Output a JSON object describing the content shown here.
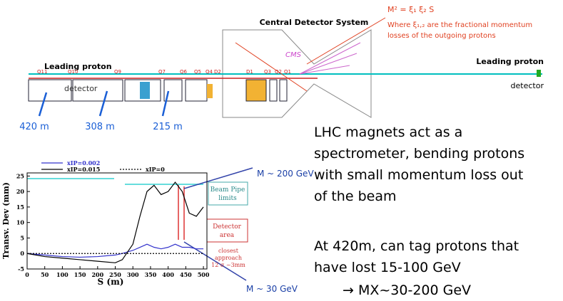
{
  "diagram": {
    "central_title": "Central Detector System",
    "formula": "M² = ξ₁ ξ₂ S",
    "formula_note": [
      "Where ξ₁,₂ are the fractional momentum",
      "losses of the outgoing protons"
    ],
    "cms": "CMS",
    "left_proton": "Leading proton",
    "left_detector": "detector",
    "right_proton": "Leading proton",
    "right_detector": "detector",
    "magnets": [
      "Q11",
      "Q10",
      "Q9",
      "Q7",
      "Q6",
      "Q5",
      "Q4",
      "D2",
      "D1",
      "Q3",
      "Q2",
      "Q1"
    ],
    "positions": [
      "420 m",
      "308 m",
      "215 m"
    ]
  },
  "text": {
    "paragraph1": [
      "LHC magnets act as a",
      "spectrometer, bending protons",
      "with small momentum loss out",
      "of the beam"
    ],
    "paragraph2": [
      "At 420m, can tag protons that",
      "have lost 15-100 GeV",
      "→ MX~30-200 GeV"
    ]
  },
  "chart_data": {
    "type": "line",
    "x_label": "S (m)",
    "y_label": "Transv. Dev (mm)",
    "x": [
      0,
      50,
      100,
      150,
      200,
      250,
      270,
      300,
      320,
      340,
      360,
      380,
      400,
      420,
      440,
      460,
      480,
      500
    ],
    "series": [
      {
        "name": "xIP=0.002",
        "color": "#3333cc",
        "values": [
          0,
          -0.5,
          -1,
          -1.2,
          -1,
          -0.5,
          0,
          1,
          2,
          3,
          2,
          1.5,
          2,
          3,
          2,
          2,
          1.5,
          1.5
        ]
      },
      {
        "name": "xIP=0.015",
        "color": "#000000",
        "values": [
          0,
          -1,
          -1.5,
          -2,
          -2.5,
          -3,
          -2,
          3,
          12,
          20,
          22,
          19,
          20,
          23,
          20,
          13,
          12,
          15
        ]
      },
      {
        "name": "xIP=0",
        "color": "#000000",
        "dash": true,
        "values": [
          0,
          0,
          0,
          0,
          0,
          0,
          0,
          0,
          0,
          0,
          0,
          0,
          0,
          0,
          0,
          0,
          0,
          0
        ]
      }
    ],
    "xlim": [
      0,
      510
    ],
    "ylim": [
      -5,
      26
    ],
    "xticks": [
      0,
      50,
      100,
      150,
      200,
      250,
      300,
      350,
      400,
      450,
      500
    ],
    "yticks": [
      -5,
      0,
      5,
      10,
      15,
      20,
      25
    ],
    "annotations": {
      "beam_pipe": [
        "Beam Pipe",
        "limits"
      ],
      "detector_area": [
        "Detector",
        "area"
      ],
      "closest": [
        "closest",
        "approach",
        "12 σ ~3mm"
      ],
      "m200": "M ~ 200 GeV",
      "m30": "M ~ 30 GeV"
    }
  }
}
